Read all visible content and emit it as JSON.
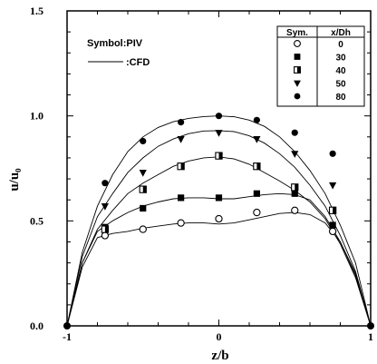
{
  "chart_data": {
    "type": "line",
    "title": "",
    "xlabel": "z/b",
    "ylabel": "u/u₀",
    "xlim": [
      -1,
      1
    ],
    "ylim": [
      0,
      1.5
    ],
    "x_ticks": [
      "-1",
      "0",
      "1"
    ],
    "y_ticks": [
      "0.0",
      "0.5",
      "1.0",
      "1.5"
    ],
    "grid": false,
    "annotations": {
      "piv": "Symbol:PIV",
      "cfd": ":CFD"
    },
    "legend": {
      "placement": "top-right",
      "header_sym": "Sym.",
      "header_var": "x/Dh",
      "entries": [
        {
          "label": "0",
          "marker": "circle-open"
        },
        {
          "label": "30",
          "marker": "square-filled"
        },
        {
          "label": "40",
          "marker": "square-half"
        },
        {
          "label": "50",
          "marker": "triangle-down"
        },
        {
          "label": "80",
          "marker": "circle-filled"
        }
      ]
    },
    "series": [
      {
        "name": "0",
        "marker": "circle-open",
        "points": [
          [
            -0.75,
            0.43
          ],
          [
            -0.5,
            0.46
          ],
          [
            -0.25,
            0.49
          ],
          [
            0.0,
            0.51
          ],
          [
            0.25,
            0.54
          ],
          [
            0.5,
            0.55
          ],
          [
            0.75,
            0.45
          ]
        ],
        "curve": [
          [
            -1,
            0
          ],
          [
            -0.9,
            0.28
          ],
          [
            -0.8,
            0.42
          ],
          [
            -0.7,
            0.44
          ],
          [
            -0.6,
            0.45
          ],
          [
            -0.5,
            0.465
          ],
          [
            -0.4,
            0.475
          ],
          [
            -0.3,
            0.485
          ],
          [
            -0.2,
            0.49
          ],
          [
            -0.1,
            0.49
          ],
          [
            0.0,
            0.485
          ],
          [
            0.1,
            0.49
          ],
          [
            0.2,
            0.505
          ],
          [
            0.3,
            0.52
          ],
          [
            0.4,
            0.535
          ],
          [
            0.5,
            0.54
          ],
          [
            0.6,
            0.53
          ],
          [
            0.7,
            0.49
          ],
          [
            0.8,
            0.4
          ],
          [
            0.9,
            0.25
          ],
          [
            1,
            0
          ]
        ]
      },
      {
        "name": "30",
        "marker": "square-filled",
        "points": [
          [
            -0.75,
            0.47
          ],
          [
            -0.5,
            0.56
          ],
          [
            -0.25,
            0.61
          ],
          [
            0.0,
            0.61
          ],
          [
            0.25,
            0.63
          ],
          [
            0.5,
            0.63
          ],
          [
            0.75,
            0.48
          ]
        ],
        "curve": [
          [
            -1,
            0
          ],
          [
            -0.9,
            0.3
          ],
          [
            -0.8,
            0.45
          ],
          [
            -0.7,
            0.5
          ],
          [
            -0.6,
            0.54
          ],
          [
            -0.5,
            0.57
          ],
          [
            -0.4,
            0.59
          ],
          [
            -0.3,
            0.605
          ],
          [
            -0.2,
            0.61
          ],
          [
            -0.1,
            0.61
          ],
          [
            0.0,
            0.605
          ],
          [
            0.1,
            0.605
          ],
          [
            0.2,
            0.615
          ],
          [
            0.3,
            0.625
          ],
          [
            0.4,
            0.63
          ],
          [
            0.5,
            0.625
          ],
          [
            0.6,
            0.6
          ],
          [
            0.7,
            0.52
          ],
          [
            0.8,
            0.4
          ],
          [
            0.9,
            0.24
          ],
          [
            1,
            0
          ]
        ]
      },
      {
        "name": "40",
        "marker": "square-half",
        "points": [
          [
            -0.75,
            0.46
          ],
          [
            -0.5,
            0.65
          ],
          [
            -0.25,
            0.76
          ],
          [
            0.0,
            0.81
          ],
          [
            0.25,
            0.76
          ],
          [
            0.5,
            0.66
          ],
          [
            0.75,
            0.55
          ]
        ],
        "curve": [
          [
            -1,
            0
          ],
          [
            -0.9,
            0.3
          ],
          [
            -0.8,
            0.46
          ],
          [
            -0.7,
            0.55
          ],
          [
            -0.6,
            0.63
          ],
          [
            -0.5,
            0.68
          ],
          [
            -0.4,
            0.72
          ],
          [
            -0.3,
            0.76
          ],
          [
            -0.2,
            0.785
          ],
          [
            -0.1,
            0.8
          ],
          [
            0.0,
            0.805
          ],
          [
            0.1,
            0.795
          ],
          [
            0.2,
            0.77
          ],
          [
            0.3,
            0.73
          ],
          [
            0.4,
            0.69
          ],
          [
            0.5,
            0.645
          ],
          [
            0.6,
            0.59
          ],
          [
            0.7,
            0.51
          ],
          [
            0.8,
            0.39
          ],
          [
            0.9,
            0.23
          ],
          [
            1,
            0
          ]
        ]
      },
      {
        "name": "50",
        "marker": "triangle-down",
        "points": [
          [
            -0.75,
            0.57
          ],
          [
            -0.5,
            0.73
          ],
          [
            -0.25,
            0.89
          ],
          [
            0.0,
            0.92
          ],
          [
            0.25,
            0.89
          ],
          [
            0.5,
            0.82
          ],
          [
            0.75,
            0.67
          ]
        ],
        "curve": [
          [
            -1,
            0
          ],
          [
            -0.9,
            0.33
          ],
          [
            -0.8,
            0.52
          ],
          [
            -0.7,
            0.63
          ],
          [
            -0.6,
            0.73
          ],
          [
            -0.5,
            0.8
          ],
          [
            -0.4,
            0.855
          ],
          [
            -0.3,
            0.89
          ],
          [
            -0.2,
            0.915
          ],
          [
            -0.1,
            0.928
          ],
          [
            0.0,
            0.93
          ],
          [
            0.1,
            0.925
          ],
          [
            0.2,
            0.905
          ],
          [
            0.3,
            0.87
          ],
          [
            0.4,
            0.82
          ],
          [
            0.5,
            0.755
          ],
          [
            0.6,
            0.67
          ],
          [
            0.7,
            0.57
          ],
          [
            0.8,
            0.43
          ],
          [
            0.9,
            0.26
          ],
          [
            1,
            0
          ]
        ]
      },
      {
        "name": "80",
        "marker": "circle-filled",
        "points": [
          [
            -0.75,
            0.68
          ],
          [
            -0.5,
            0.88
          ],
          [
            -0.25,
            0.97
          ],
          [
            0.0,
            1.0
          ],
          [
            0.25,
            0.98
          ],
          [
            0.5,
            0.92
          ],
          [
            0.75,
            0.82
          ]
        ],
        "curve": [
          [
            -1,
            0
          ],
          [
            -0.9,
            0.35
          ],
          [
            -0.8,
            0.57
          ],
          [
            -0.7,
            0.72
          ],
          [
            -0.6,
            0.83
          ],
          [
            -0.5,
            0.9
          ],
          [
            -0.4,
            0.945
          ],
          [
            -0.3,
            0.972
          ],
          [
            -0.2,
            0.988
          ],
          [
            -0.1,
            0.997
          ],
          [
            0.0,
            1.0
          ],
          [
            0.1,
            0.996
          ],
          [
            0.2,
            0.98
          ],
          [
            0.3,
            0.95
          ],
          [
            0.4,
            0.9
          ],
          [
            0.5,
            0.83
          ],
          [
            0.6,
            0.74
          ],
          [
            0.7,
            0.63
          ],
          [
            0.8,
            0.48
          ],
          [
            0.9,
            0.3
          ],
          [
            1,
            0
          ]
        ]
      }
    ]
  }
}
